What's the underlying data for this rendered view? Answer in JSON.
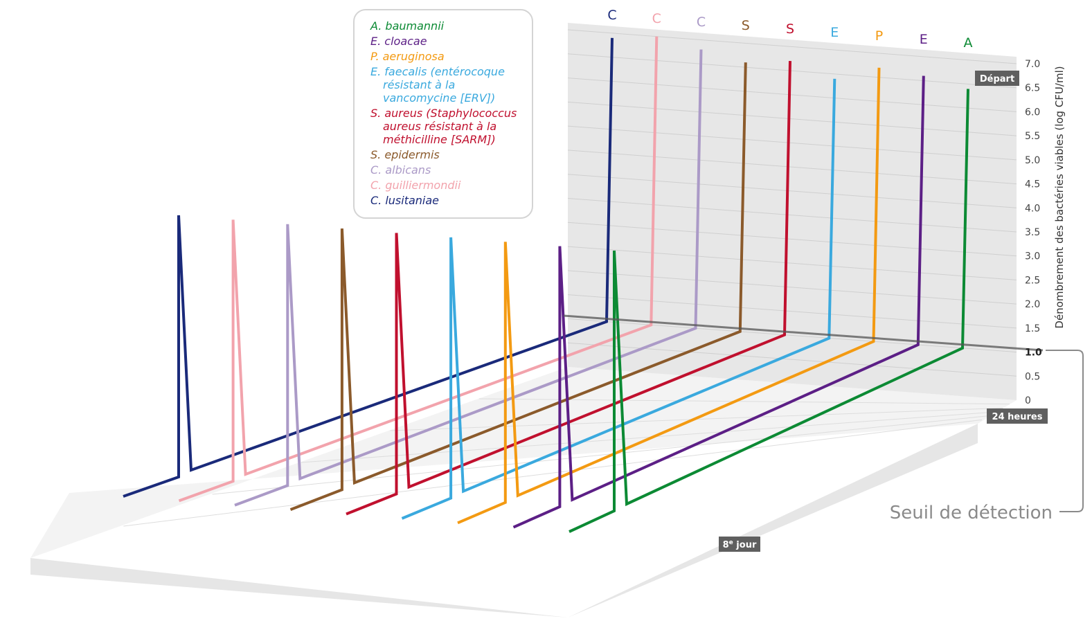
{
  "chart_data": {
    "type": "line",
    "ylabel": "Dénombrement des bactéries viables (log CFU/ml)",
    "y_ticks": [
      "7.0",
      "6.5",
      "6.0",
      "5.5",
      "5.0",
      "4.5",
      "4.0",
      "3.5",
      "3.0",
      "2.5",
      "2.0",
      "1.5",
      "1.0",
      "0.5",
      "0"
    ],
    "ylim": [
      0,
      7.0
    ],
    "time_labels": {
      "start": "Départ",
      "day1": "24 heures",
      "day8": "8e jour"
    },
    "threshold": {
      "value": 1.0,
      "label": "Seuil de détection"
    },
    "series": [
      {
        "name": "C. lusitaniae",
        "letter": "C",
        "color": "#1a2a7a",
        "start": 6.9,
        "day1": 1.0,
        "day8": 1.0
      },
      {
        "name": "C. guilliermondii",
        "letter": "C",
        "color": "#f2a3ac",
        "start": 7.0,
        "day1": 1.0,
        "day8": 1.0
      },
      {
        "name": "C. albicans",
        "letter": "C",
        "color": "#ab9ac7",
        "start": 6.8,
        "day1": 1.0,
        "day8": 1.0
      },
      {
        "name": "S. epidermis",
        "letter": "S",
        "color": "#8b5a2b",
        "start": 6.6,
        "day1": 1.0,
        "day8": 1.0
      },
      {
        "name": "S. aureus (Staphylococcus aureus résistant à la méthicilline [SARM])",
        "letter": "S",
        "color": "#c0102e",
        "start": 6.7,
        "day1": 1.0,
        "day8": 1.0
      },
      {
        "name": "E. faecalis (entérocoque résistant à la vancomycine [ERV])",
        "letter": "E",
        "color": "#3aa9de",
        "start": 6.4,
        "day1": 1.0,
        "day8": 1.0
      },
      {
        "name": "P. aeruginosa",
        "letter": "P",
        "color": "#f39a12",
        "start": 6.7,
        "day1": 1.0,
        "day8": 1.0
      },
      {
        "name": "E. cloacae",
        "letter": "E",
        "color": "#5c1f86",
        "start": 6.6,
        "day1": 1.0,
        "day8": 1.0
      },
      {
        "name": "A. baumannii",
        "letter": "A",
        "color": "#0c8a34",
        "start": 6.4,
        "day1": 1.0,
        "day8": 1.0
      }
    ],
    "legend_placement": "top-center"
  },
  "legend": {
    "entries": [
      {
        "lines": [
          "A. baumannii"
        ],
        "color": "#0c8a34"
      },
      {
        "lines": [
          "E. cloacae"
        ],
        "color": "#5c1f86"
      },
      {
        "lines": [
          "P. aeruginosa"
        ],
        "color": "#f39a12"
      },
      {
        "lines": [
          "E. faecalis (entérocoque",
          "résistant à la",
          "vancomycine [ERV])"
        ],
        "color": "#3aa9de"
      },
      {
        "lines": [
          "S. aureus (Staphylococcus",
          "aureus résistant à la",
          "méthicilline [SARM])"
        ],
        "color": "#c0102e"
      },
      {
        "lines": [
          "S. epidermis"
        ],
        "color": "#8b5a2b"
      },
      {
        "lines": [
          "C. albicans"
        ],
        "color": "#ab9ac7"
      },
      {
        "lines": [
          "C. guilliermondii"
        ],
        "color": "#f2a3ac"
      },
      {
        "lines": [
          "C. lusitaniae"
        ],
        "color": "#1a2a7a"
      }
    ]
  },
  "badges": {
    "start": "Départ",
    "day1": "24 heures",
    "day8_num": "8",
    "day8_sup": "e",
    "day8_word": " jour"
  }
}
